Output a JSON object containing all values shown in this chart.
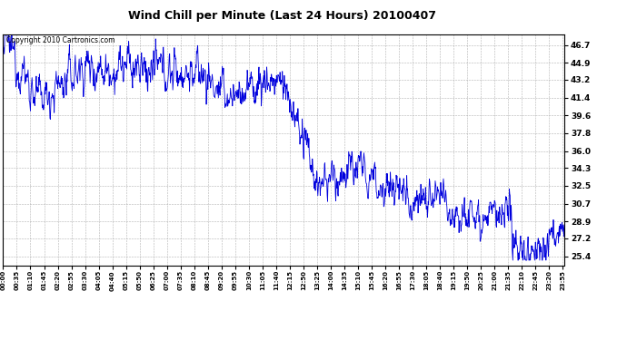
{
  "title": "Wind Chill per Minute (Last 24 Hours) 20100407",
  "copyright_text": "Copyright 2010 Cartronics.com",
  "line_color": "#0000dd",
  "background_color": "#ffffff",
  "plot_background_color": "#ffffff",
  "grid_color": "#aaaaaa",
  "yticks": [
    25.4,
    27.2,
    28.9,
    30.7,
    32.5,
    34.3,
    36.0,
    37.8,
    39.6,
    41.4,
    43.2,
    44.9,
    46.7
  ],
  "ylim": [
    24.5,
    47.8
  ],
  "xtick_labels": [
    "00:00",
    "00:35",
    "01:10",
    "01:45",
    "02:20",
    "02:55",
    "03:30",
    "04:05",
    "04:40",
    "05:15",
    "05:50",
    "06:25",
    "07:00",
    "07:35",
    "08:10",
    "08:45",
    "09:20",
    "09:55",
    "10:30",
    "11:05",
    "11:40",
    "12:15",
    "12:50",
    "13:25",
    "14:00",
    "14:35",
    "15:10",
    "15:45",
    "16:20",
    "16:55",
    "17:30",
    "18:05",
    "18:40",
    "19:15",
    "19:50",
    "20:25",
    "21:00",
    "21:35",
    "22:10",
    "22:45",
    "23:20",
    "23:55"
  ],
  "num_points": 1440,
  "seed": 12345
}
